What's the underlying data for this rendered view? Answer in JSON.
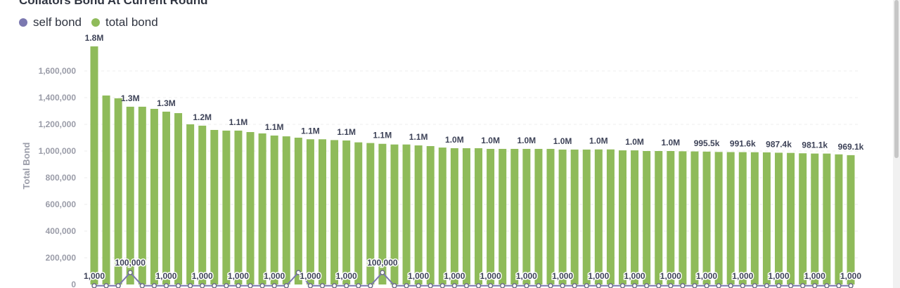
{
  "chart_data": {
    "type": "bar",
    "title": "Collators Bond At Current Round",
    "ylabel": "Total Bond",
    "xlabel": "",
    "ylim": [
      0,
      1800000
    ],
    "yticks": [
      0,
      200000,
      400000,
      600000,
      800000,
      1000000,
      1200000,
      1400000,
      1600000
    ],
    "ytick_labels": [
      "0",
      "200,000",
      "400,000",
      "600,000",
      "800,000",
      "1,000,000",
      "1,200,000",
      "1,400,000",
      "1,600,000"
    ],
    "grid": true,
    "legend_position": "top-left",
    "colors": {
      "self_bond": "#7b78b0",
      "total_bond": "#8fbb5a"
    },
    "series": [
      {
        "name": "self bond",
        "type": "line",
        "values": [
          1000,
          1000,
          1000,
          100000,
          1000,
          1000,
          1000,
          1000,
          1000,
          1000,
          1000,
          1000,
          1000,
          1000,
          1000,
          1000,
          1000,
          100000,
          1000,
          1000,
          1000,
          1000,
          1000,
          1000,
          100000,
          1000,
          1000,
          1000,
          1000,
          1000,
          1000,
          1000,
          1000,
          1000,
          1000,
          1000,
          1000,
          1000,
          1000,
          1000,
          1000,
          1000,
          1000,
          1000,
          1000,
          1000,
          1000,
          1000,
          1000,
          1000,
          1000,
          1000,
          1000,
          1000,
          1000,
          1000,
          1000,
          1000,
          1000,
          1000,
          1000,
          1000,
          1000,
          1000
        ]
      },
      {
        "name": "total bond",
        "type": "bar",
        "values": [
          1784000,
          1416000,
          1395000,
          1332000,
          1332000,
          1316000,
          1295000,
          1284000,
          1200000,
          1190000,
          1158000,
          1153000,
          1153000,
          1142000,
          1132000,
          1116000,
          1110000,
          1100000,
          1088000,
          1088000,
          1082000,
          1079000,
          1065000,
          1060000,
          1054000,
          1049000,
          1049000,
          1042000,
          1037000,
          1026000,
          1021000,
          1021000,
          1021000,
          1016000,
          1016000,
          1016000,
          1016000,
          1016000,
          1016000,
          1011000,
          1011000,
          1011000,
          1012000,
          1012000,
          1005000,
          1005000,
          1000000,
          1000000,
          1000000,
          998000,
          997000,
          995500,
          993000,
          992000,
          991600,
          991000,
          990000,
          987400,
          986000,
          983000,
          981100,
          981000,
          975000,
          969100
        ]
      }
    ],
    "bar_labels": [
      "1.8M",
      "1.3M",
      "1.3M",
      "1.2M",
      "1.1M",
      "1.1M",
      "1.1M",
      "1.1M",
      "1.1M",
      "1.1M",
      "1.0M",
      "1.0M",
      "1.0M",
      "1.0M",
      "1.0M",
      "1.0M",
      "1.0M",
      "995.5k",
      "991.6k",
      "987.4k",
      "981.1k",
      "969.1k"
    ],
    "line_labels": [
      "1,000",
      "100,000",
      "1,000",
      "1,000",
      "1,000",
      "1,000",
      "1,000",
      "1,000",
      "100,000",
      "1,000",
      "1,000",
      "1,000",
      "1,000",
      "1,000",
      "1,000",
      "1,000",
      "1,000",
      "1,000",
      "1,000",
      "1,000",
      "1,000",
      "1,000"
    ]
  },
  "legend": {
    "self": "self bond",
    "total": "total bond"
  }
}
